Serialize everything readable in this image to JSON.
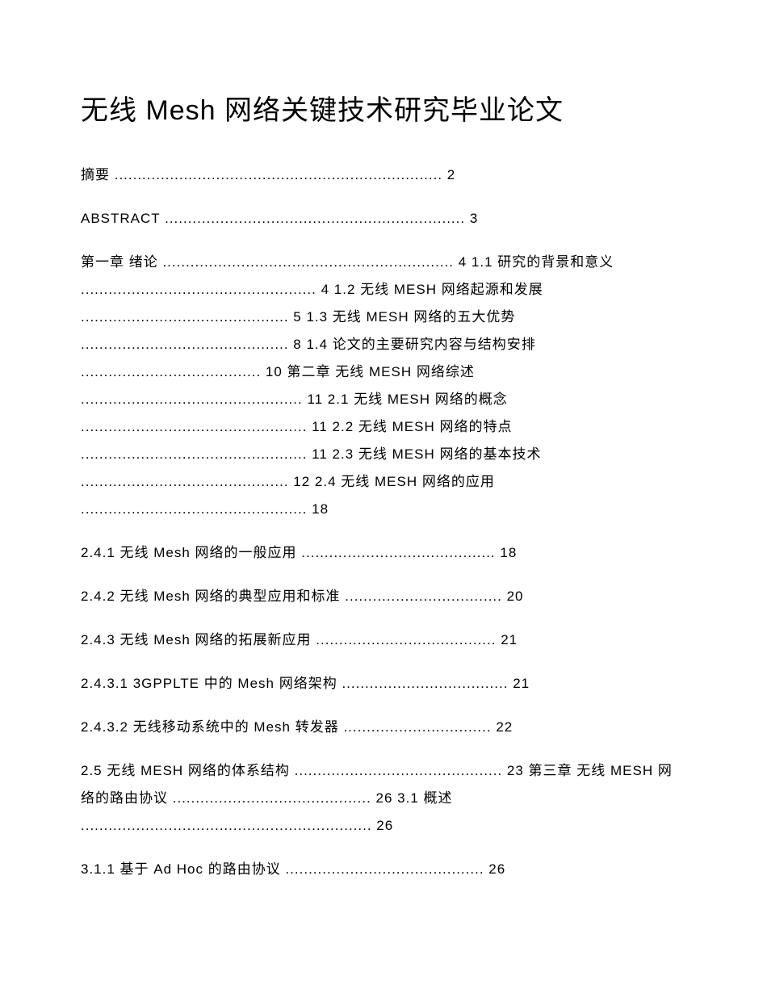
{
  "title": "无线 Mesh 网络关键技术研究毕业论文",
  "toc": {
    "line1": "摘要 ....................................................................... 2",
    "line2": "ABSTRACT ................................................................. 3",
    "block1": "第一章 绪论 ............................................................... 4 1.1 研究的背景和意义 ................................................... 4 1.2 无线 MESH 网络起源和发展 ............................................. 5 1.3 无线 MESH 网络的五大优势 ............................................. 8 1.4 论文的主要研究内容与结构安排 ....................................... 10 第二章 无线 MESH 网络综述 ................................................ 11 2.1 无线 MESH 网络的概念 ................................................. 11 2.2 无线 MESH 网络的特点 ................................................. 11 2.3 无线 MESH 网络的基本技术 ............................................. 12 2.4 无线 MESH 网络的应用 ................................................. 18",
    "line3": "2.4.1 无线 Mesh 网络的一般应用 .......................................... 18",
    "line4": "2.4.2 无线 Mesh 网络的典型应用和标准 .................................. 20",
    "line5": "2.4.3 无线 Mesh 网络的拓展新应用 ....................................... 21",
    "line6": "2.4.3.1 3GPPLTE 中的 Mesh 网络架构 .................................... 21",
    "line7": "2.4.3.2 无线移动系统中的 Mesh 转发器 ................................ 22",
    "block2": "2.5 无线 MESH 网络的体系结构 ............................................. 23 第三章 无线 MESH 网络的路由协议 ........................................... 26 3.1 概述 ............................................................... 26",
    "line8": "3.1.1 基于 Ad Hoc 的路由协议 ........................................... 26"
  }
}
